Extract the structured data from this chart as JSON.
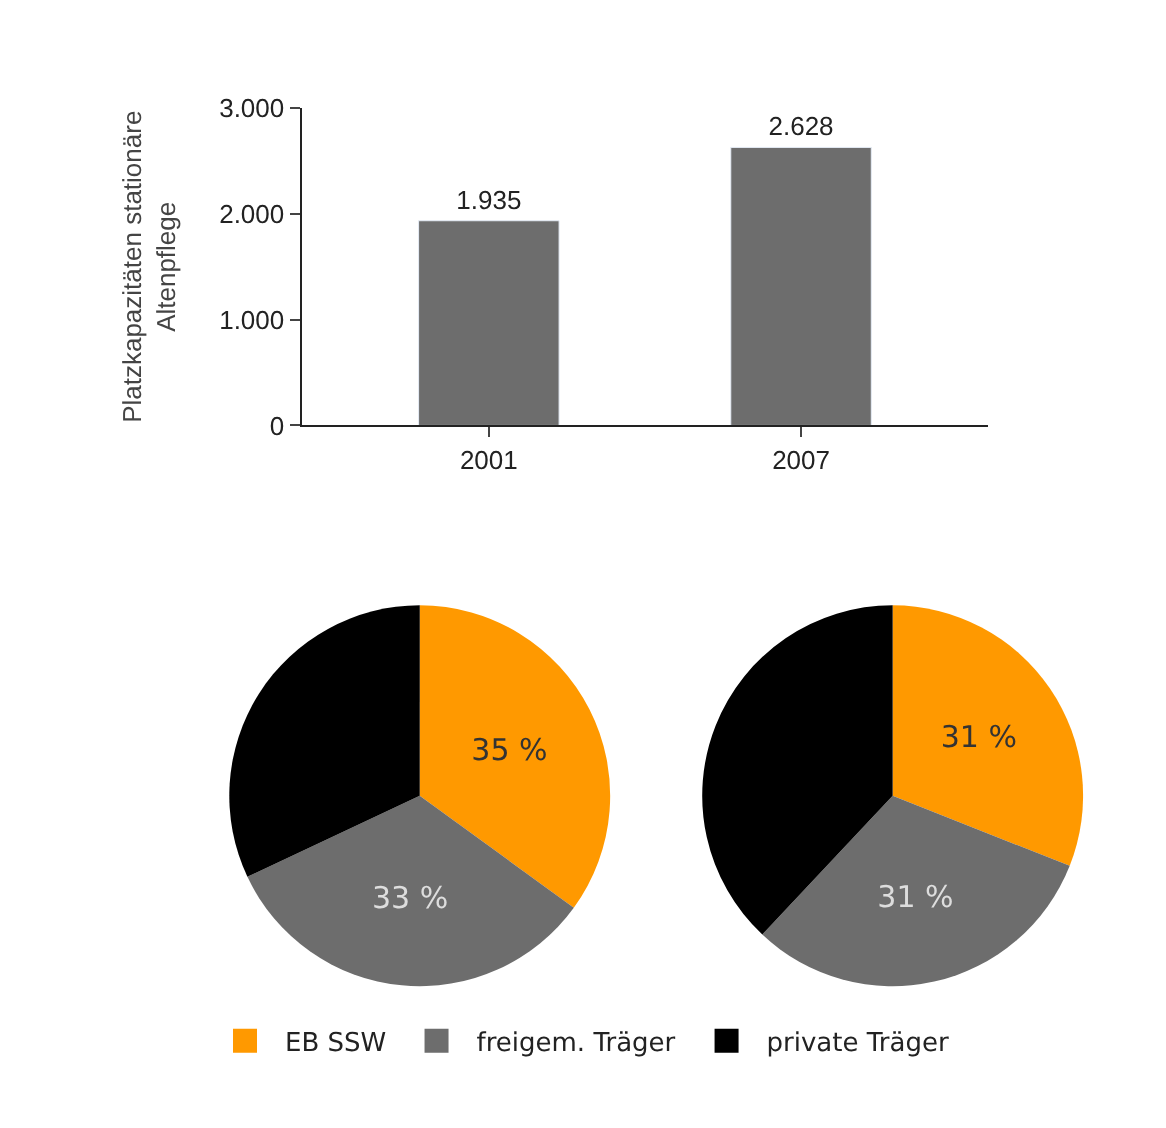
{
  "chart_data": [
    {
      "type": "bar",
      "ylabel": "Platzkapazitäten stationäre Altenpflege",
      "categories": [
        "2001",
        "2007"
      ],
      "values": [
        1935,
        2628
      ],
      "value_labels": [
        "1.935",
        "2.628"
      ],
      "color": "#6d6d6d",
      "ylim": [
        0,
        3000
      ],
      "yticks": [
        {
          "value": 0,
          "label": "0"
        },
        {
          "value": 1000,
          "label": "1.000"
        },
        {
          "value": 2000,
          "label": "2.000"
        },
        {
          "value": 3000,
          "label": "3.000"
        }
      ]
    },
    {
      "type": "pie",
      "categories": [
        "EB SSW",
        "freigem. Träger",
        "private Träger"
      ],
      "values": [
        35,
        33,
        32
      ],
      "colors": [
        "#ff9900",
        "#6d6d6d",
        "#000000"
      ],
      "value_labels": [
        "35 %",
        "33 %",
        null
      ],
      "legend": "bottom"
    },
    {
      "type": "pie",
      "categories": [
        null,
        null,
        null
      ],
      "values": [
        31,
        31,
        38
      ],
      "colors": [
        "#ff9900",
        "#6d6d6d",
        "#000000"
      ],
      "value_labels": [
        "31 %",
        "31 %",
        null
      ]
    }
  ]
}
